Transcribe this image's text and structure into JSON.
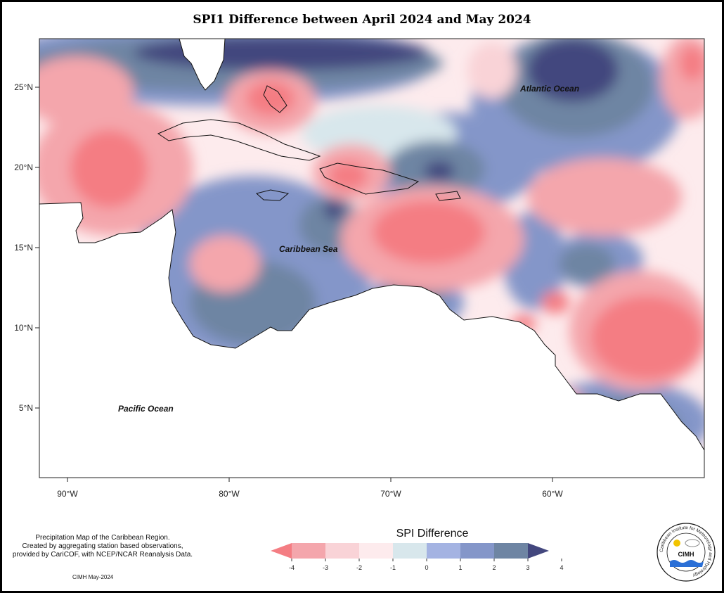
{
  "title": "SPI1 Difference between April 2024 and May 2024",
  "axes": {
    "x_ticks": [
      "90°W",
      "80°W",
      "70°W",
      "60°W"
    ],
    "y_ticks": [
      "25°N",
      "20°N",
      "15°N",
      "10°N",
      "5°N"
    ]
  },
  "labels": {
    "atlantic": "Atlantic Ocean",
    "caribbean": "Caribbean Sea",
    "pacific": "Pacific Ocean"
  },
  "legend": {
    "title": "SPI Difference",
    "ticks": [
      "-4",
      "-3",
      "-2",
      "-1",
      "0",
      "1",
      "2",
      "3",
      "4"
    ],
    "colors": [
      "#f47d83",
      "#f4a6ac",
      "#f9d3d7",
      "#fdebed",
      "#d8e7ec",
      "#a4b3e2",
      "#8496c9",
      "#6e85a3",
      "#43477e"
    ]
  },
  "note": {
    "line1": "Precipitation Map of the Caribbean Region.",
    "line2": "Created by aggregating station based observations,",
    "line3": "provided by CariCOF, with NCEP/NCAR Reanalysis Data.",
    "credit": "CIMH May-2024"
  },
  "logo": {
    "text": "CIMH",
    "ring_text": "Caribbean Institute for Meteorology and Hydrology"
  }
}
